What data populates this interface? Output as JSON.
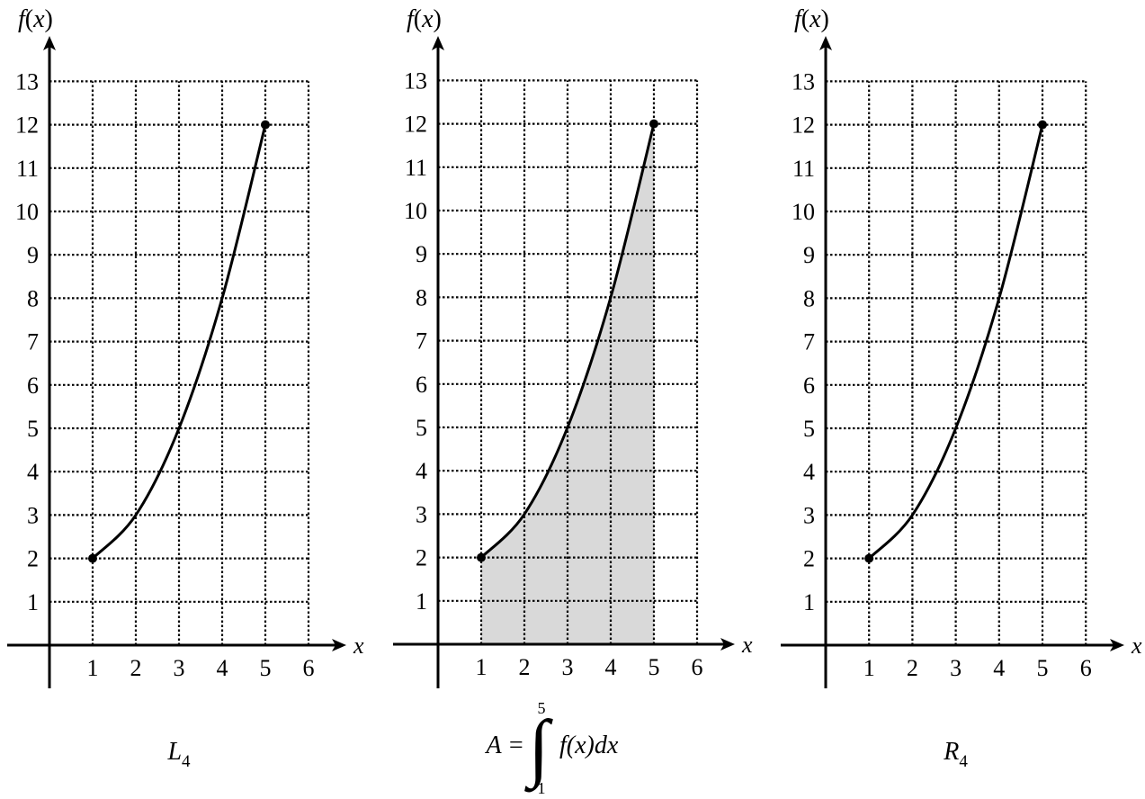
{
  "chart_data": [
    {
      "type": "line",
      "xlabel": "x",
      "ylabel": "f(x)",
      "xlim": [
        0,
        6
      ],
      "ylim": [
        0,
        13
      ],
      "x_ticks": [
        "1",
        "2",
        "3",
        "4",
        "5",
        "6"
      ],
      "y_ticks": [
        "1",
        "2",
        "3",
        "4",
        "5",
        "6",
        "7",
        "8",
        "9",
        "10",
        "11",
        "12",
        "13"
      ],
      "grid": true,
      "series": [
        {
          "x": [
            1,
            2,
            3,
            4,
            5
          ],
          "values": [
            2,
            3,
            5,
            8,
            12
          ]
        }
      ],
      "endpoints": [
        [
          1,
          2
        ],
        [
          5,
          12
        ]
      ],
      "shaded_area": null,
      "caption": {
        "main": "L",
        "sub": "4"
      }
    },
    {
      "type": "area",
      "xlabel": "x",
      "ylabel": "f(x)",
      "xlim": [
        0,
        6
      ],
      "ylim": [
        0,
        13
      ],
      "x_ticks": [
        "1",
        "2",
        "3",
        "4",
        "5",
        "6"
      ],
      "y_ticks": [
        "1",
        "2",
        "3",
        "4",
        "5",
        "6",
        "7",
        "8",
        "9",
        "10",
        "11",
        "12",
        "13"
      ],
      "grid": true,
      "series": [
        {
          "x": [
            1,
            2,
            3,
            4,
            5
          ],
          "values": [
            2,
            3,
            5,
            8,
            12
          ]
        }
      ],
      "endpoints": [
        [
          1,
          2
        ],
        [
          5,
          12
        ]
      ],
      "shaded_area": {
        "from": 1,
        "to": 5,
        "color": "#d9d9d9"
      },
      "caption": {
        "lhs": "A =",
        "integral": "∫",
        "lower": "1",
        "upper": "5",
        "integrand": "f(x)dx"
      }
    },
    {
      "type": "line",
      "xlabel": "x",
      "ylabel": "f(x)",
      "xlim": [
        0,
        6
      ],
      "ylim": [
        0,
        13
      ],
      "x_ticks": [
        "1",
        "2",
        "3",
        "4",
        "5",
        "6"
      ],
      "y_ticks": [
        "1",
        "2",
        "3",
        "4",
        "5",
        "6",
        "7",
        "8",
        "9",
        "10",
        "11",
        "12",
        "13"
      ],
      "grid": true,
      "series": [
        {
          "x": [
            1,
            2,
            3,
            4,
            5
          ],
          "values": [
            2,
            3,
            5,
            8,
            12
          ]
        }
      ],
      "endpoints": [
        [
          1,
          2
        ],
        [
          5,
          12
        ]
      ],
      "shaded_area": null,
      "caption": {
        "main": "R",
        "sub": "4"
      }
    }
  ]
}
